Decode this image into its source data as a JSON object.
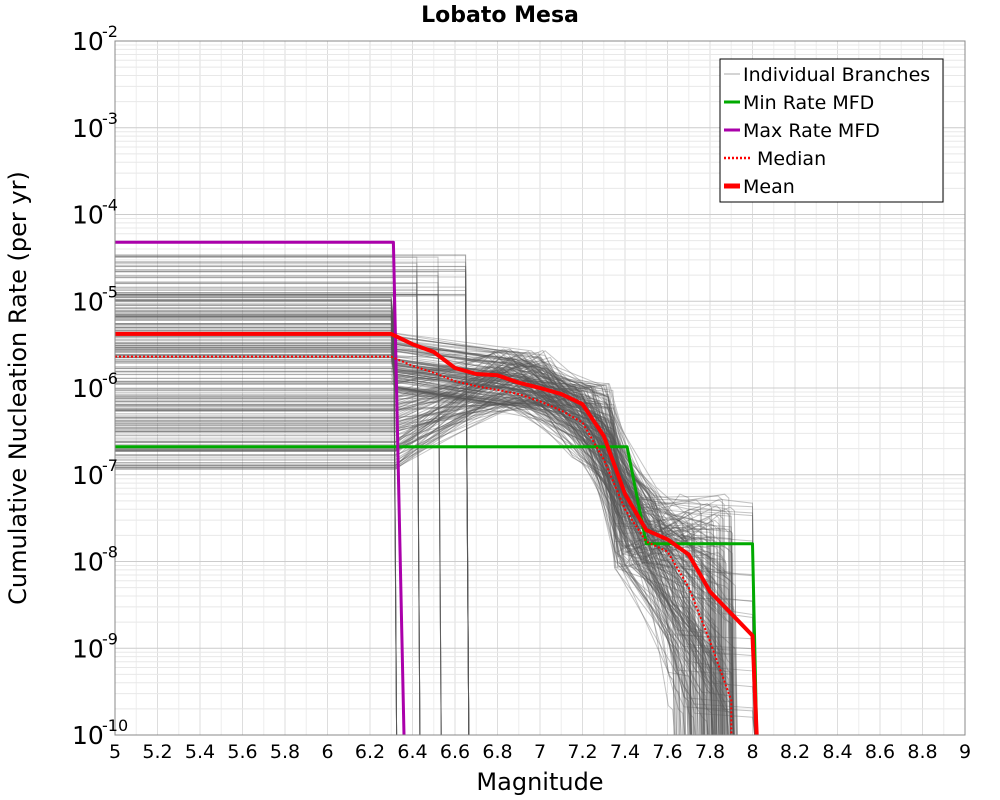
{
  "chart_data": {
    "type": "line",
    "title": "Lobato Mesa",
    "xlabel": "Magnitude",
    "ylabel": "Cumulative Nucleation Rate (per yr)",
    "xscale": "linear",
    "yscale": "log",
    "xlim": [
      5,
      9
    ],
    "ylim": [
      1e-10,
      0.01
    ],
    "grid": true,
    "legend_location": "top-right",
    "x_ticks": [
      "5",
      "5.2",
      "5.4",
      "5.6",
      "5.8",
      "6",
      "6.2",
      "6.4",
      "6.6",
      "6.8",
      "7",
      "7.2",
      "7.4",
      "7.6",
      "7.8",
      "8",
      "8.2",
      "8.4",
      "8.6",
      "8.8",
      "9"
    ],
    "y_ticks": [
      {
        "base": "10",
        "exp": "-2"
      },
      {
        "base": "10",
        "exp": "-3"
      },
      {
        "base": "10",
        "exp": "-4"
      },
      {
        "base": "10",
        "exp": "-5"
      },
      {
        "base": "10",
        "exp": "-6"
      },
      {
        "base": "10",
        "exp": "-7"
      },
      {
        "base": "10",
        "exp": "-8"
      },
      {
        "base": "10",
        "exp": "-9"
      },
      {
        "base": "10",
        "exp": "-10"
      }
    ],
    "series": [
      {
        "name": "Individual Branches",
        "color": "#555555",
        "style": "thin-many",
        "note": "hundreds of logic-tree branches spanning roughly 1e-7 to 3e-5 at M5"
      },
      {
        "name": "Min Rate MFD",
        "color": "#00aa00",
        "style": "solid",
        "x": [
          5.0,
          7.41,
          7.5,
          8.0,
          8.02
        ],
        "y": [
          2.1e-07,
          2.1e-07,
          1.6e-08,
          1.6e-08,
          1e-10
        ]
      },
      {
        "name": "Max Rate MFD",
        "color": "#aa00aa",
        "style": "solid",
        "x": [
          5.0,
          6.31,
          6.36
        ],
        "y": [
          4.8e-05,
          4.8e-05,
          1e-10
        ]
      },
      {
        "name": "Median",
        "color": "#ff0000",
        "style": "dotted",
        "x": [
          5.0,
          6.3,
          6.4,
          6.5,
          6.6,
          6.7,
          6.8,
          6.9,
          7.0,
          7.1,
          7.2,
          7.3,
          7.4,
          7.5,
          7.6,
          7.7,
          7.8,
          7.9,
          7.9
        ],
        "y": [
          2.3e-06,
          2.3e-06,
          1.8e-06,
          1.5e-06,
          1.2e-06,
          1.05e-06,
          9.5e-07,
          8.5e-07,
          7e-07,
          5.5e-07,
          4e-07,
          1.5e-07,
          4e-08,
          1.7e-08,
          1.3e-08,
          5e-09,
          1.2e-09,
          2.5e-10,
          1e-10
        ]
      },
      {
        "name": "Mean",
        "color": "#ff0000",
        "style": "thick",
        "x": [
          5.0,
          6.3,
          6.4,
          6.5,
          6.6,
          6.7,
          6.8,
          6.9,
          7.0,
          7.1,
          7.2,
          7.3,
          7.4,
          7.5,
          7.6,
          7.7,
          7.8,
          7.9,
          8.0,
          8.02
        ],
        "y": [
          4.2e-06,
          4.2e-06,
          3.2e-06,
          2.6e-06,
          1.7e-06,
          1.45e-06,
          1.4e-06,
          1.15e-06,
          1e-06,
          8.5e-07,
          6.5e-07,
          2.8e-07,
          6e-08,
          2.3e-08,
          1.8e-08,
          1.2e-08,
          4.5e-09,
          2.5e-09,
          1.4e-09,
          1e-10
        ]
      }
    ]
  }
}
